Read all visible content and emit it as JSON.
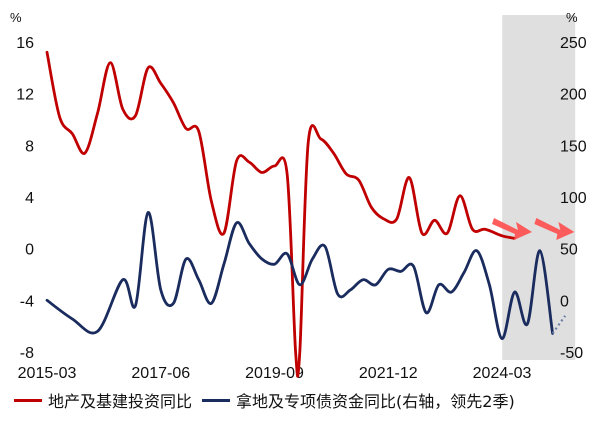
{
  "chart_data": {
    "type": "line",
    "left_axis": {
      "unit": "%",
      "ylim": [
        -8,
        16
      ],
      "ticks": [
        "16",
        "12",
        "8",
        "4",
        "0",
        "-4",
        "-8"
      ]
    },
    "right_axis": {
      "unit": "%",
      "ylim": [
        -50,
        250
      ],
      "ticks": [
        "250",
        "200",
        "150",
        "100",
        "50",
        "0",
        "-50"
      ]
    },
    "x_ticks": [
      "2015-03",
      "2017-06",
      "2019-09",
      "2021-12",
      "2024-03"
    ],
    "shaded_region": {
      "from": "2024-04",
      "to": "2025-06"
    },
    "series": [
      {
        "name": "地产及基建投资同比",
        "axis": "left",
        "color": "#c00000",
        "points": [
          [
            "2015-03",
            15.2
          ],
          [
            "2015-06",
            10.2
          ],
          [
            "2015-09",
            8.9
          ],
          [
            "2015-12",
            7.4
          ],
          [
            "2016-03",
            10.5
          ],
          [
            "2016-06",
            14.4
          ],
          [
            "2016-09",
            10.8
          ],
          [
            "2016-12",
            10.3
          ],
          [
            "2017-03",
            14.0
          ],
          [
            "2017-06",
            12.8
          ],
          [
            "2017-09",
            11.3
          ],
          [
            "2017-12",
            9.3
          ],
          [
            "2018-03",
            9.1
          ],
          [
            "2018-06",
            3.7
          ],
          [
            "2018-09",
            1.2
          ],
          [
            "2018-12",
            6.8
          ],
          [
            "2019-03",
            6.7
          ],
          [
            "2019-06",
            5.9
          ],
          [
            "2019-09",
            6.4
          ],
          [
            "2019-12",
            5.8
          ],
          [
            "2020-02",
            -8.0
          ],
          [
            "2020-03",
            -8.0
          ],
          [
            "2020-05",
            8.2
          ],
          [
            "2020-08",
            8.5
          ],
          [
            "2020-11",
            7.4
          ],
          [
            "2021-02",
            5.8
          ],
          [
            "2021-05",
            5.3
          ],
          [
            "2021-08",
            3.2
          ],
          [
            "2021-11",
            2.3
          ],
          [
            "2022-02",
            2.3
          ],
          [
            "2022-05",
            5.5
          ],
          [
            "2022-08",
            1.2
          ],
          [
            "2022-11",
            2.2
          ],
          [
            "2023-02",
            1.2
          ],
          [
            "2023-05",
            4.1
          ],
          [
            "2023-08",
            1.5
          ],
          [
            "2023-11",
            1.5
          ],
          [
            "2024-03",
            1.0
          ],
          [
            "2024-06",
            0.8
          ]
        ]
      },
      {
        "name": "拿地及专项债资金同比(右轴，领先2季)",
        "axis": "right",
        "color": "#1a2b5e",
        "points": [
          [
            "2015-03",
            0
          ],
          [
            "2015-09",
            -18
          ],
          [
            "2016-03",
            -30
          ],
          [
            "2016-09",
            20
          ],
          [
            "2016-12",
            -5
          ],
          [
            "2017-03",
            85
          ],
          [
            "2017-06",
            10
          ],
          [
            "2017-09",
            -3
          ],
          [
            "2017-12",
            40
          ],
          [
            "2018-03",
            20
          ],
          [
            "2018-06",
            -3
          ],
          [
            "2018-09",
            35
          ],
          [
            "2018-12",
            75
          ],
          [
            "2019-03",
            55
          ],
          [
            "2019-06",
            40
          ],
          [
            "2019-09",
            35
          ],
          [
            "2019-12",
            45
          ],
          [
            "2020-03",
            15
          ],
          [
            "2020-06",
            40
          ],
          [
            "2020-09",
            52
          ],
          [
            "2020-12",
            6
          ],
          [
            "2021-03",
            10
          ],
          [
            "2021-06",
            20
          ],
          [
            "2021-09",
            15
          ],
          [
            "2021-12",
            30
          ],
          [
            "2022-03",
            28
          ],
          [
            "2022-06",
            33
          ],
          [
            "2022-09",
            -12
          ],
          [
            "2022-12",
            15
          ],
          [
            "2023-03",
            8
          ],
          [
            "2023-06",
            27
          ],
          [
            "2023-09",
            48
          ],
          [
            "2023-12",
            15
          ],
          [
            "2024-03",
            -37
          ],
          [
            "2024-06",
            8
          ],
          [
            "2024-09",
            -23
          ],
          [
            "2024-12",
            48
          ],
          [
            "2025-03",
            -32
          ]
        ],
        "projection": [
          [
            "2025-03",
            -32
          ],
          [
            "2025-06",
            -15
          ]
        ]
      }
    ],
    "legend": {
      "placement": "bottom"
    }
  }
}
